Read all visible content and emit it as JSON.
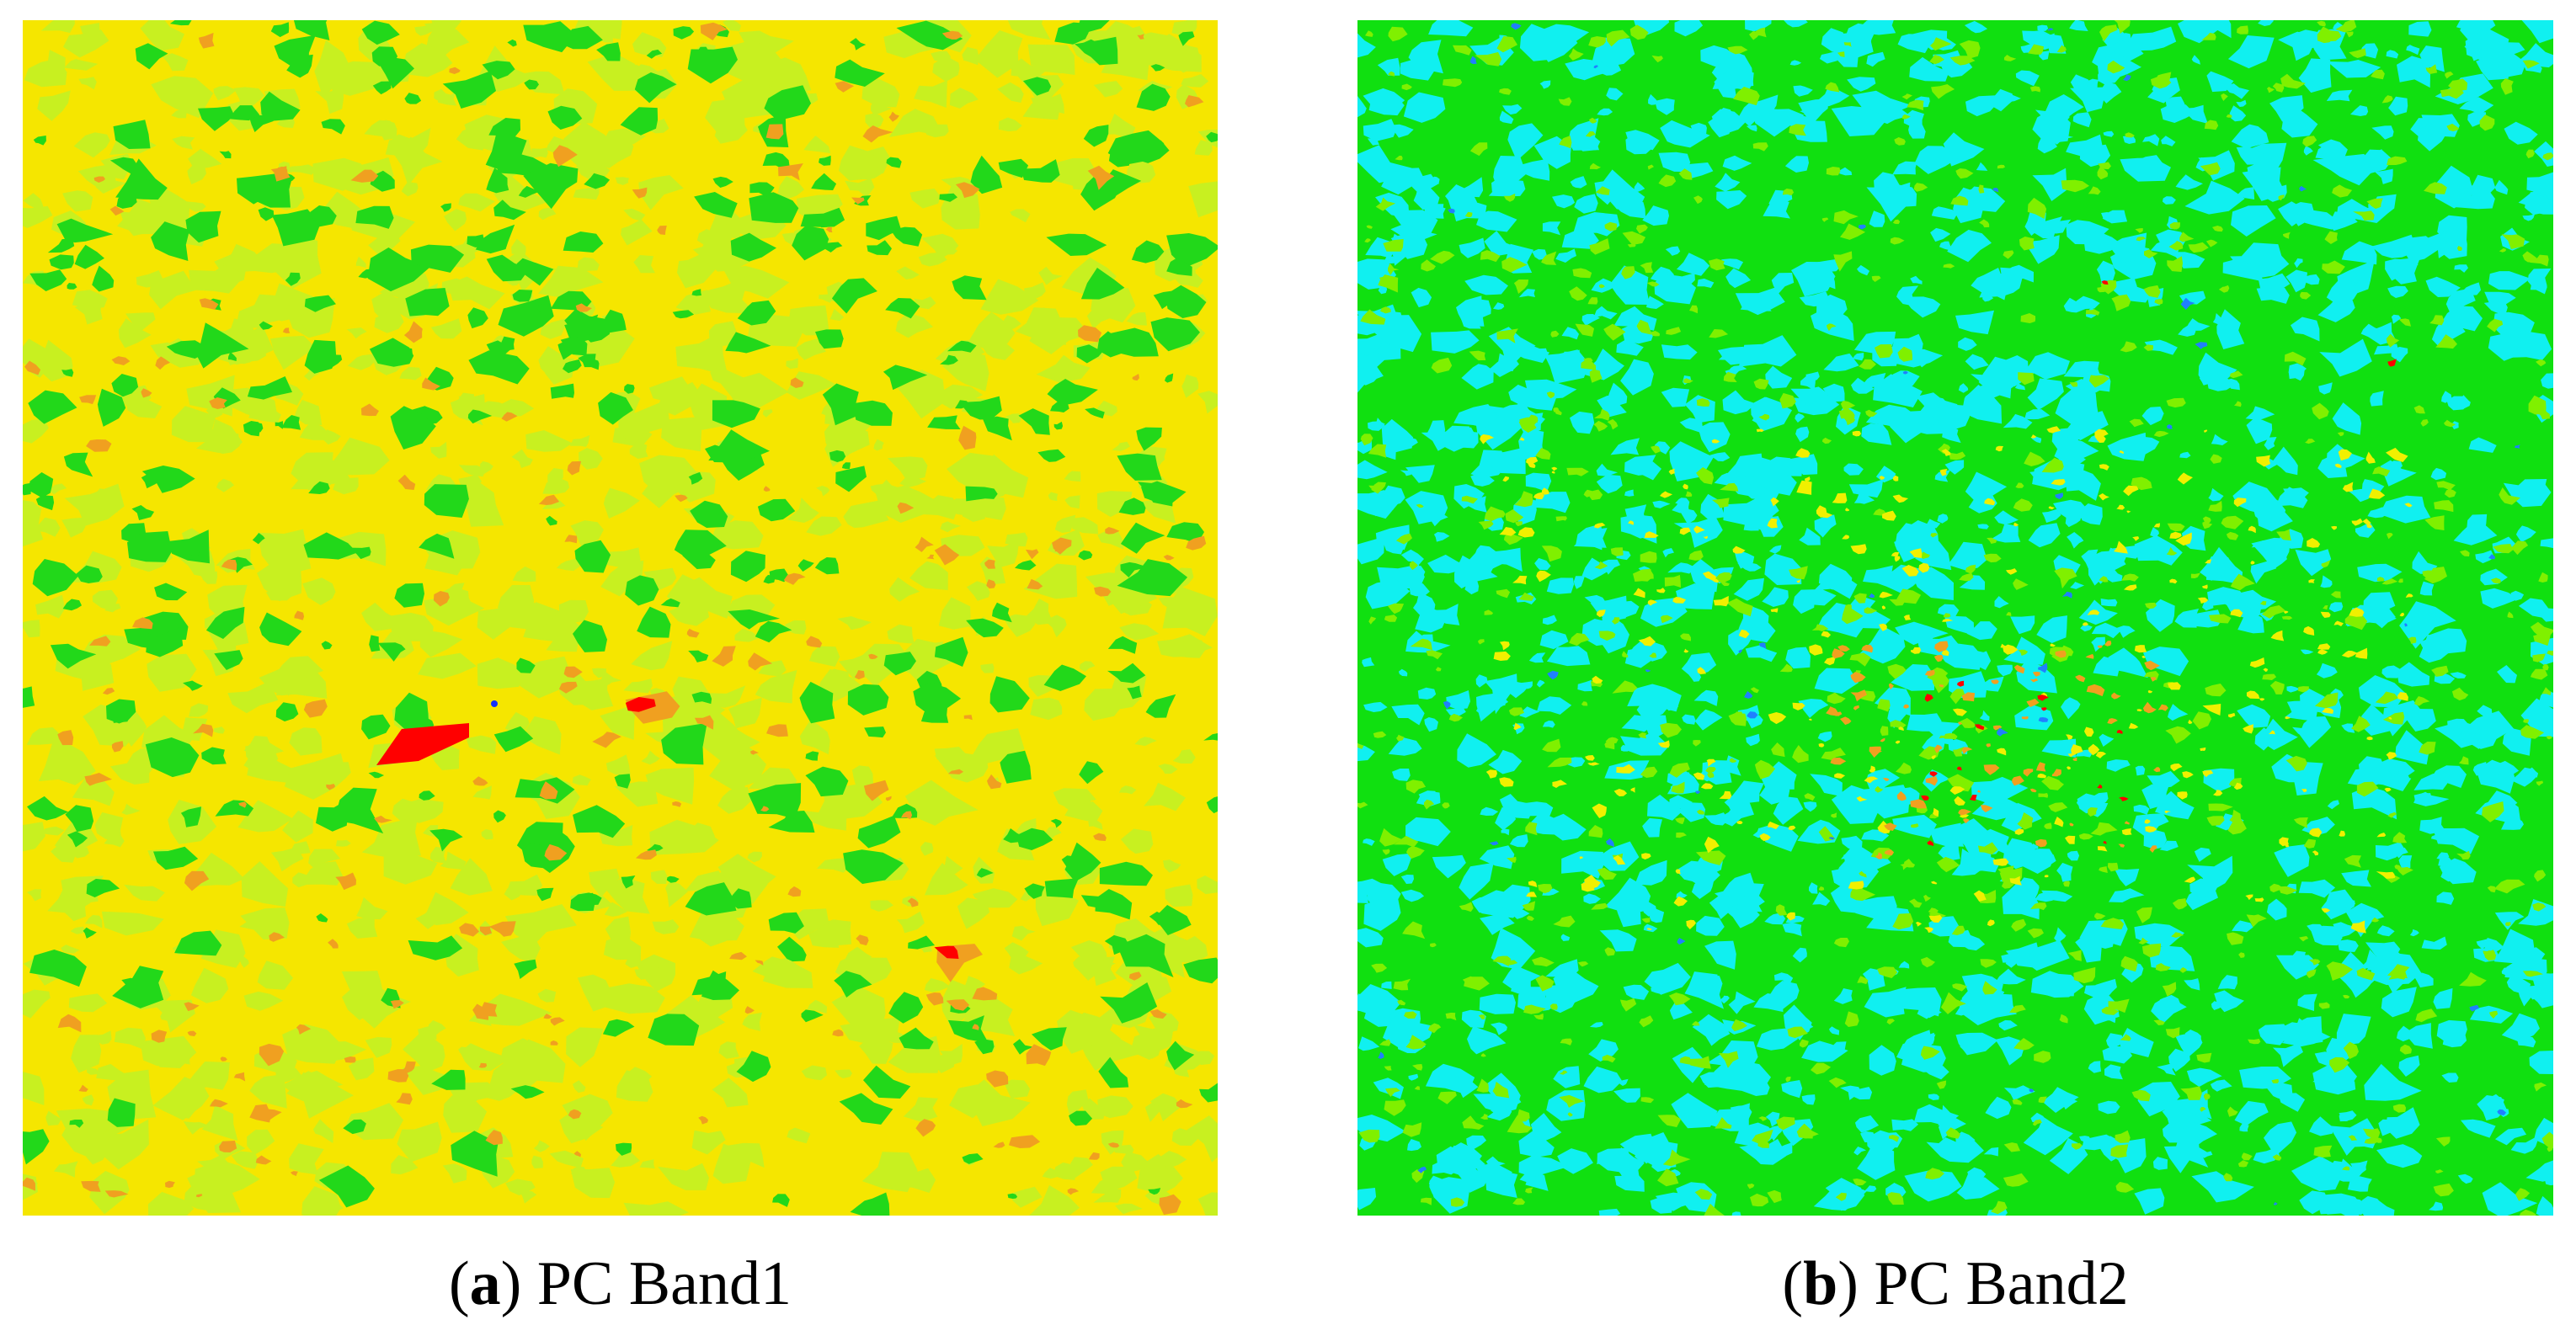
{
  "figure": {
    "panels": [
      {
        "id": "a",
        "letter": "a",
        "label": "PC Band1",
        "colors": {
          "base": "#f5e600",
          "light": "#c8f020",
          "green": "#22d81a",
          "orange": "#f0a020",
          "red": "#ff0000",
          "blue": "#1030ff"
        }
      },
      {
        "id": "b",
        "letter": "b",
        "label": "PC Band2",
        "colors": {
          "base": "#10e010",
          "cyan": "#10f0f0",
          "lightgreen": "#80f000",
          "yellow": "#f0f000",
          "orange": "#f0a020",
          "red": "#ff0000",
          "blue": "#2080ff"
        }
      }
    ]
  }
}
